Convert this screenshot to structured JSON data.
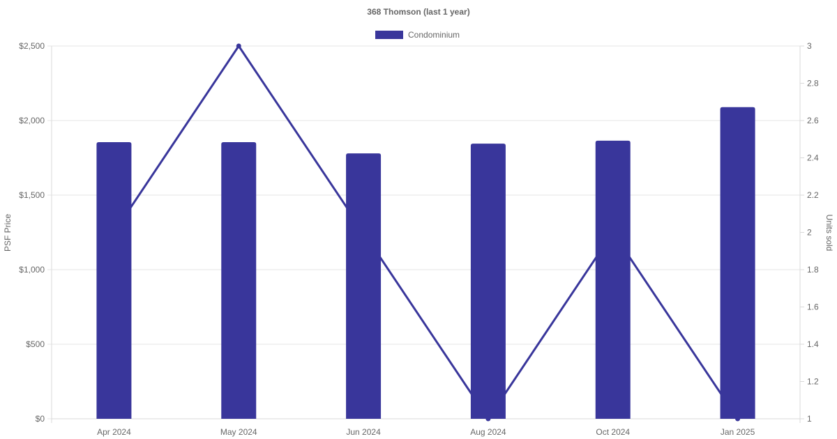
{
  "chart_data": {
    "type": "bar",
    "title": "368 Thomson (last 1 year)",
    "categories": [
      "Apr 2024",
      "May 2024",
      "Jun 2024",
      "Aug 2024",
      "Oct 2024",
      "Jan 2025"
    ],
    "series": [
      {
        "name": "Condominium",
        "kind": "bar",
        "axis": "left",
        "values": [
          1855,
          1855,
          1780,
          1845,
          1865,
          2090
        ]
      },
      {
        "kind": "line",
        "axis": "right",
        "values": [
          2,
          3,
          2,
          1,
          2,
          1
        ]
      }
    ],
    "ylabel": "PSF Price",
    "y2label": "Units sold",
    "ylim": [
      0,
      2500
    ],
    "y2lim": [
      1,
      3
    ],
    "y_ticks": [
      "$0",
      "$500",
      "$1,000",
      "$1,500",
      "$2,000",
      "$2,500"
    ],
    "y2_ticks": [
      "1",
      "1.2",
      "1.4",
      "1.6",
      "1.8",
      "2",
      "2.2",
      "2.4",
      "2.6",
      "2.8",
      "3"
    ],
    "legend": "top-center",
    "grid": true,
    "colors": {
      "bar": "#39369b",
      "line": "#39369b"
    }
  }
}
